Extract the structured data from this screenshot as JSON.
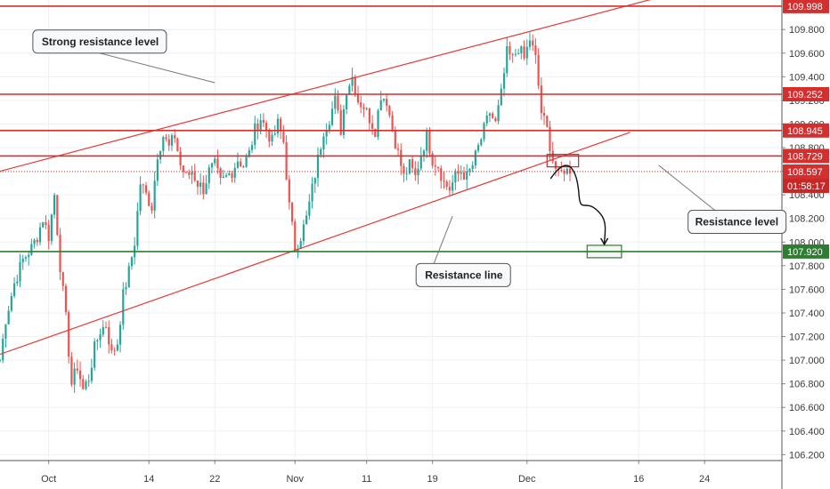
{
  "chart_data": {
    "type": "candlestick",
    "instrument_view": "USDJPY-style daily candles",
    "ylim": [
      106.15,
      110.05
    ],
    "y_ticks": [
      106.2,
      106.4,
      106.6,
      106.8,
      107.0,
      107.2,
      107.4,
      107.6,
      107.8,
      108.0,
      108.2,
      108.4,
      108.6,
      108.8,
      109.0,
      109.2,
      109.4,
      109.6,
      109.8
    ],
    "y_tick_labels": [
      "106.200",
      "106.400",
      "106.600",
      "106.800",
      "107.000",
      "107.200",
      "107.400",
      "107.600",
      "107.800",
      "108.000",
      "108.200",
      "108.400",
      "108.600",
      "108.800",
      "109.000",
      "109.200",
      "109.400",
      "109.600",
      "109.800"
    ],
    "x_ticks": [
      {
        "label": "Oct",
        "index": 17
      },
      {
        "label": "14",
        "index": 52
      },
      {
        "label": "22",
        "index": 75
      },
      {
        "label": "Nov",
        "index": 103
      },
      {
        "label": "11",
        "index": 128
      },
      {
        "label": "19",
        "index": 151
      },
      {
        "label": "Dec",
        "index": 184
      },
      {
        "label": "16",
        "index": 223
      },
      {
        "label": "24",
        "index": 246
      }
    ],
    "x_index_range": [
      0,
      273
    ],
    "levels": [
      {
        "label": "109.998",
        "value": 109.998,
        "color": "#d32f2f"
      },
      {
        "label": "109.252",
        "value": 109.252,
        "color": "#d32f2f"
      },
      {
        "label": "108.945",
        "value": 108.945,
        "color": "#d32f2f"
      },
      {
        "label": "108.729",
        "value": 108.729,
        "color": "#d32f2f"
      },
      {
        "label": "107.920",
        "value": 107.92,
        "color": "#2e7d32"
      }
    ],
    "current_price": {
      "label": "108.597",
      "value": 108.597,
      "color": "#d32f2f",
      "countdown": "01:58:17"
    },
    "trend_lines": [
      {
        "name": "upper-channel",
        "from": {
          "index": 0,
          "value": 108.6
        },
        "to": {
          "index": 232,
          "value": 110.085
        }
      },
      {
        "name": "lower-channel",
        "from": {
          "index": 0,
          "value": 107.05
        },
        "to": {
          "index": 220,
          "value": 108.93
        }
      }
    ],
    "annotations": [
      {
        "text": "Strong resistance level",
        "index": 55,
        "value": 109.6
      },
      {
        "text": "Resistance line",
        "index": 163,
        "value": 108.12
      },
      {
        "text": "Resistance level",
        "index": 239,
        "value": 108.42
      }
    ],
    "target_box": {
      "from_index": 205,
      "to_index": 217,
      "value": 107.92
    },
    "entry_box": {
      "from_index": 191,
      "to_index": 202,
      "value": 108.69
    },
    "colors": {
      "up": "#26a69a",
      "down": "#ef5350",
      "grid": "#eef0f3",
      "axis": "#3a3a3a"
    },
    "key_points": [
      [
        0,
        107.0
      ],
      [
        2,
        107.35
      ],
      [
        5,
        107.65
      ],
      [
        8,
        107.85
      ],
      [
        11,
        107.95
      ],
      [
        13,
        108.05
      ],
      [
        15,
        108.2
      ],
      [
        17,
        108.05
      ],
      [
        19,
        108.4
      ],
      [
        21,
        107.8
      ],
      [
        23,
        107.35
      ],
      [
        25,
        106.8
      ],
      [
        27,
        106.95
      ],
      [
        29,
        106.75
      ],
      [
        31,
        106.85
      ],
      [
        33,
        107.1
      ],
      [
        35,
        107.25
      ],
      [
        37,
        107.3
      ],
      [
        39,
        107.05
      ],
      [
        41,
        107.15
      ],
      [
        43,
        107.55
      ],
      [
        45,
        107.75
      ],
      [
        47,
        108.0
      ],
      [
        49,
        108.5
      ],
      [
        51,
        108.4
      ],
      [
        53,
        108.3
      ],
      [
        55,
        108.75
      ],
      [
        57,
        108.9
      ],
      [
        59,
        108.8
      ],
      [
        61,
        108.9
      ],
      [
        63,
        108.65
      ],
      [
        65,
        108.55
      ],
      [
        67,
        108.6
      ],
      [
        69,
        108.5
      ],
      [
        71,
        108.45
      ],
      [
        73,
        108.6
      ],
      [
        75,
        108.65
      ],
      [
        77,
        108.5
      ],
      [
        79,
        108.55
      ],
      [
        81,
        108.6
      ],
      [
        83,
        108.7
      ],
      [
        85,
        108.65
      ],
      [
        87,
        108.75
      ],
      [
        89,
        108.95
      ],
      [
        91,
        109.05
      ],
      [
        93,
        108.95
      ],
      [
        95,
        108.85
      ],
      [
        97,
        109.0
      ],
      [
        99,
        108.85
      ],
      [
        101,
        108.3
      ],
      [
        103,
        107.95
      ],
      [
        105,
        108.05
      ],
      [
        107,
        108.2
      ],
      [
        109,
        108.45
      ],
      [
        111,
        108.7
      ],
      [
        113,
        108.95
      ],
      [
        115,
        109.05
      ],
      [
        117,
        109.2
      ],
      [
        119,
        108.95
      ],
      [
        121,
        109.3
      ],
      [
        123,
        109.4
      ],
      [
        125,
        109.2
      ],
      [
        127,
        109.15
      ],
      [
        129,
        109.05
      ],
      [
        131,
        108.95
      ],
      [
        133,
        109.25
      ],
      [
        135,
        109.2
      ],
      [
        137,
        108.95
      ],
      [
        139,
        108.75
      ],
      [
        141,
        108.55
      ],
      [
        143,
        108.65
      ],
      [
        145,
        108.55
      ],
      [
        147,
        108.75
      ],
      [
        149,
        108.9
      ],
      [
        151,
        108.7
      ],
      [
        153,
        108.65
      ],
      [
        155,
        108.5
      ],
      [
        157,
        108.45
      ],
      [
        159,
        108.55
      ],
      [
        161,
        108.6
      ],
      [
        163,
        108.55
      ],
      [
        165,
        108.65
      ],
      [
        167,
        108.8
      ],
      [
        169,
        108.95
      ],
      [
        171,
        109.1
      ],
      [
        173,
        109.0
      ],
      [
        175,
        109.25
      ],
      [
        177,
        109.6
      ],
      [
        179,
        109.55
      ],
      [
        181,
        109.65
      ],
      [
        183,
        109.55
      ],
      [
        185,
        109.72
      ],
      [
        187,
        109.55
      ],
      [
        189,
        109.1
      ],
      [
        191,
        108.95
      ],
      [
        193,
        108.7
      ],
      [
        195,
        108.55
      ],
      [
        197,
        108.62
      ],
      [
        199,
        108.58
      ]
    ]
  }
}
